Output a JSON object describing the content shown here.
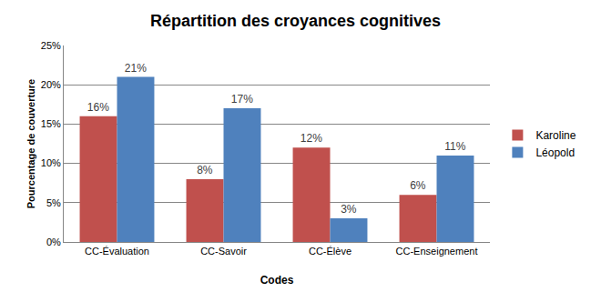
{
  "chart_data": {
    "type": "bar",
    "title": "Répartition des croyances cognitives",
    "x_label": "Codes",
    "y_label": "Pourcentage de couverture",
    "categories": [
      "CC-Évaluation",
      "CC-Savoir",
      "CC-Élève",
      "CC-Enseignement"
    ],
    "series": [
      {
        "name": "Karoline",
        "color": "#C0504D",
        "values": [
          16,
          8,
          12,
          6
        ],
        "value_labels": [
          "16%",
          "8%",
          "12%",
          "6%"
        ]
      },
      {
        "name": "Léopold",
        "color": "#4F81BD",
        "values": [
          21,
          17,
          3,
          11
        ],
        "value_labels": [
          "21%",
          "17%",
          "3%",
          "11%"
        ]
      }
    ],
    "ylim": [
      0,
      25
    ],
    "yticks": [
      {
        "value": 0,
        "label": "0%"
      },
      {
        "value": 5,
        "label": "5%"
      },
      {
        "value": 10,
        "label": "10%"
      },
      {
        "value": 15,
        "label": "15%"
      },
      {
        "value": 20,
        "label": "20%"
      },
      {
        "value": 25,
        "label": "25%"
      }
    ],
    "grid": true,
    "legend": "right",
    "data_labels": true
  }
}
